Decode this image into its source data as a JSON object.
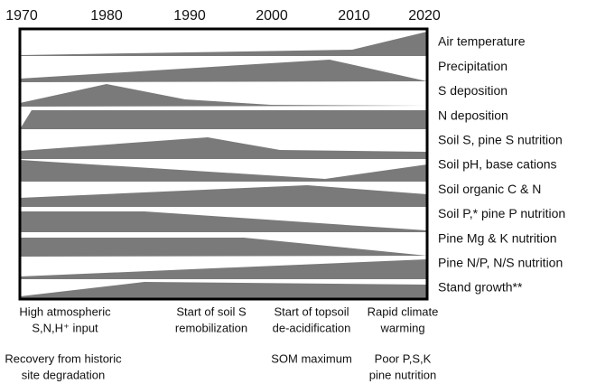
{
  "years": [
    "1970",
    "1980",
    "1990",
    "2000",
    "2010",
    "2020"
  ],
  "rows": [
    "Air temperature",
    "Precipitation",
    "S deposition",
    "N deposition",
    "Soil S, pine S nutrition",
    "Soil pH, base cations",
    "Soil organic C & N",
    "Soil P,* pine P nutrition",
    "Pine Mg & K nutrition",
    "Pine N/P, N/S nutrition",
    "Stand growth**"
  ],
  "annotations": [
    [
      "High atmospheric",
      "S,N,H⁺ input"
    ],
    [
      "Start of soil S",
      "remobilization"
    ],
    [
      "Start of topsoil",
      "de-acidification"
    ],
    [
      "Rapid climate",
      "warming"
    ],
    [
      "Recovery from historic",
      "site degradation"
    ],
    [
      "SOM maximum"
    ],
    [
      "Poor P,S,K",
      "pine nutrition"
    ]
  ]
}
